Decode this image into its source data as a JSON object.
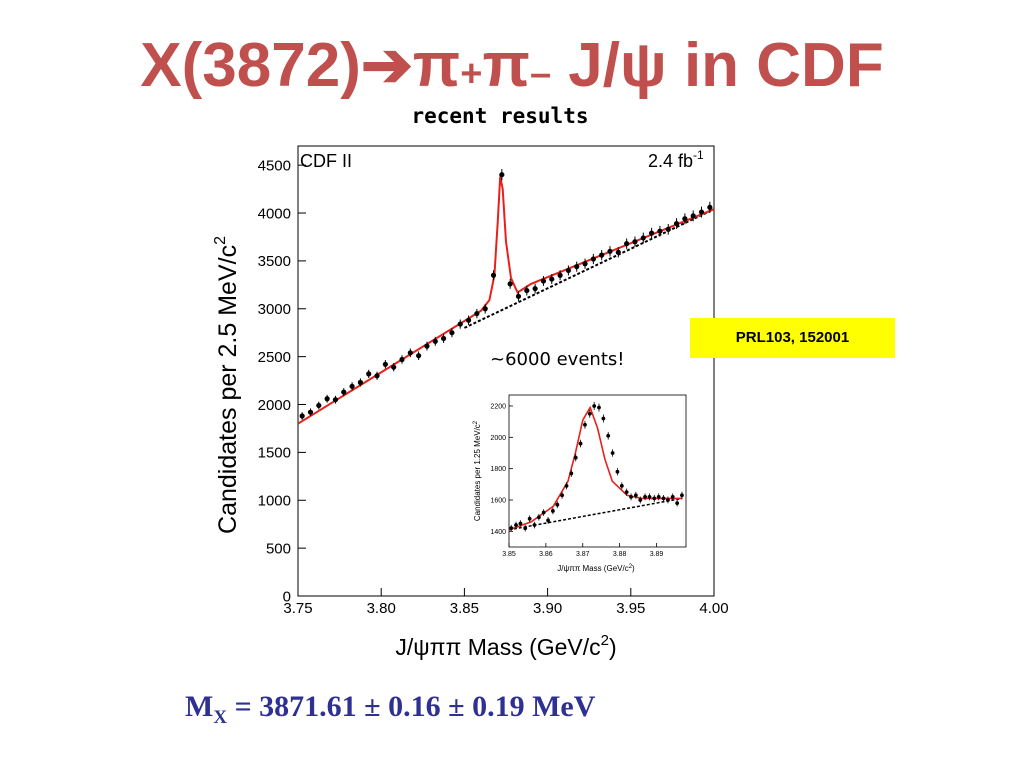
{
  "slide": {
    "title_prefix": "X(3872)",
    "title_arrow": "➔",
    "title_pi": "π",
    "title_plus": "+",
    "title_minus": "–",
    "title_mid": " J/",
    "title_psi": "ψ",
    "title_suffix": " in CDF",
    "subtitle": "recent results",
    "reference": "PRL103, 152001",
    "events_note": "~6000 events!",
    "result": {
      "symbol": "M",
      "subscript": "X",
      "text": " = 3871.61 ± 0.16 ±  0.19 MeV"
    }
  },
  "colors": {
    "title": "#c0504d",
    "fit": "#e8201c",
    "badge": "#ffff00",
    "result": "#2e3192"
  },
  "chart_data": [
    {
      "type": "scatter",
      "title": "",
      "corner_left": "CDF II",
      "corner_right_base": "2.4 fb",
      "corner_right_exp": "-1",
      "xlabel_base": "J/ψππ Mass (GeV/c",
      "xlabel_exp": "2",
      "xlabel_end": ")",
      "ylabel_base": "Candidates per 2.5 MeV/c",
      "ylabel_exp": "2",
      "xlim": [
        3.75,
        4.0
      ],
      "ylim": [
        0,
        4700
      ],
      "xticks": [
        "3.75",
        "3.80",
        "3.85",
        "3.90",
        "3.95",
        "4.00"
      ],
      "yticks": [
        "0",
        "500",
        "1000",
        "1500",
        "2000",
        "2500",
        "3000",
        "3500",
        "4000",
        "4500"
      ],
      "x": [
        3.7525,
        3.7575,
        3.7625,
        3.7675,
        3.7725,
        3.7775,
        3.7825,
        3.7875,
        3.7925,
        3.7975,
        3.8025,
        3.8075,
        3.8125,
        3.8175,
        3.8225,
        3.8275,
        3.8325,
        3.8375,
        3.8425,
        3.8475,
        3.8525,
        3.8575,
        3.8625,
        3.8675,
        3.8725,
        3.8775,
        3.8825,
        3.8875,
        3.8925,
        3.8975,
        3.9025,
        3.9075,
        3.9125,
        3.9175,
        3.9225,
        3.9275,
        3.9325,
        3.9375,
        3.9425,
        3.9475,
        3.9525,
        3.9575,
        3.9625,
        3.9675,
        3.9725,
        3.9775,
        3.9825,
        3.9875,
        3.9925,
        3.9975
      ],
      "y": [
        1880,
        1920,
        1990,
        2060,
        2050,
        2130,
        2190,
        2230,
        2320,
        2300,
        2420,
        2390,
        2470,
        2540,
        2510,
        2610,
        2660,
        2690,
        2750,
        2840,
        2880,
        2950,
        3000,
        3350,
        4400,
        3260,
        3130,
        3190,
        3210,
        3290,
        3310,
        3350,
        3400,
        3440,
        3470,
        3520,
        3560,
        3600,
        3590,
        3680,
        3700,
        3740,
        3790,
        3810,
        3830,
        3890,
        3940,
        3970,
        4010,
        4060
      ],
      "series": [
        {
          "name": "",
          "style": "fit",
          "x": [
            3.75,
            3.86,
            3.865,
            3.868,
            3.87,
            3.8715,
            3.873,
            3.875,
            3.878,
            3.882,
            3.89,
            4.0
          ],
          "y": [
            1800,
            2980,
            3090,
            3350,
            3900,
            4380,
            4250,
            3700,
            3320,
            3170,
            3260,
            4040
          ]
        },
        {
          "name": "",
          "style": "background",
          "x": [
            3.85,
            4.0
          ],
          "y": [
            2800,
            4040
          ]
        }
      ]
    },
    {
      "type": "scatter",
      "title": "",
      "inset": true,
      "xlabel_base": "J/ψππ Mass (GeV/c",
      "xlabel_exp": "2",
      "xlabel_end": ")",
      "ylabel_base": "Candidates per 1.25 MeV/c",
      "ylabel_exp": "2",
      "xlim": [
        3.85,
        3.898
      ],
      "ylim": [
        1300,
        2270
      ],
      "xticks": [
        "3.85",
        "3.86",
        "3.87",
        "3.88",
        "3.89"
      ],
      "yticks": [
        "1400",
        "1600",
        "1800",
        "2000",
        "2200"
      ],
      "x": [
        3.8506,
        3.8519,
        3.8531,
        3.8544,
        3.8556,
        3.8569,
        3.8581,
        3.8594,
        3.8606,
        3.8619,
        3.8631,
        3.8644,
        3.8656,
        3.8669,
        3.8681,
        3.8694,
        3.8706,
        3.8719,
        3.8731,
        3.8744,
        3.8756,
        3.8769,
        3.8781,
        3.8794,
        3.8806,
        3.8819,
        3.8831,
        3.8844,
        3.8856,
        3.8869,
        3.8881,
        3.8894,
        3.8906,
        3.8919,
        3.8931,
        3.8944,
        3.8956,
        3.8969
      ],
      "y": [
        1420,
        1440,
        1450,
        1420,
        1480,
        1440,
        1490,
        1520,
        1470,
        1530,
        1570,
        1630,
        1690,
        1770,
        1870,
        1960,
        2080,
        2150,
        2200,
        2190,
        2120,
        2010,
        1900,
        1780,
        1690,
        1650,
        1620,
        1630,
        1600,
        1620,
        1620,
        1610,
        1620,
        1610,
        1600,
        1620,
        1580,
        1630
      ],
      "series": [
        {
          "name": "",
          "style": "fit",
          "x": [
            3.85,
            3.856,
            3.862,
            3.866,
            3.868,
            3.87,
            3.872,
            3.874,
            3.876,
            3.878,
            3.882,
            3.886,
            3.897
          ],
          "y": [
            1410,
            1460,
            1560,
            1720,
            1900,
            2110,
            2190,
            2060,
            1860,
            1720,
            1630,
            1610,
            1610
          ]
        },
        {
          "name": "",
          "style": "background",
          "x": [
            3.85,
            3.897
          ],
          "y": [
            1410,
            1610
          ]
        }
      ]
    }
  ]
}
